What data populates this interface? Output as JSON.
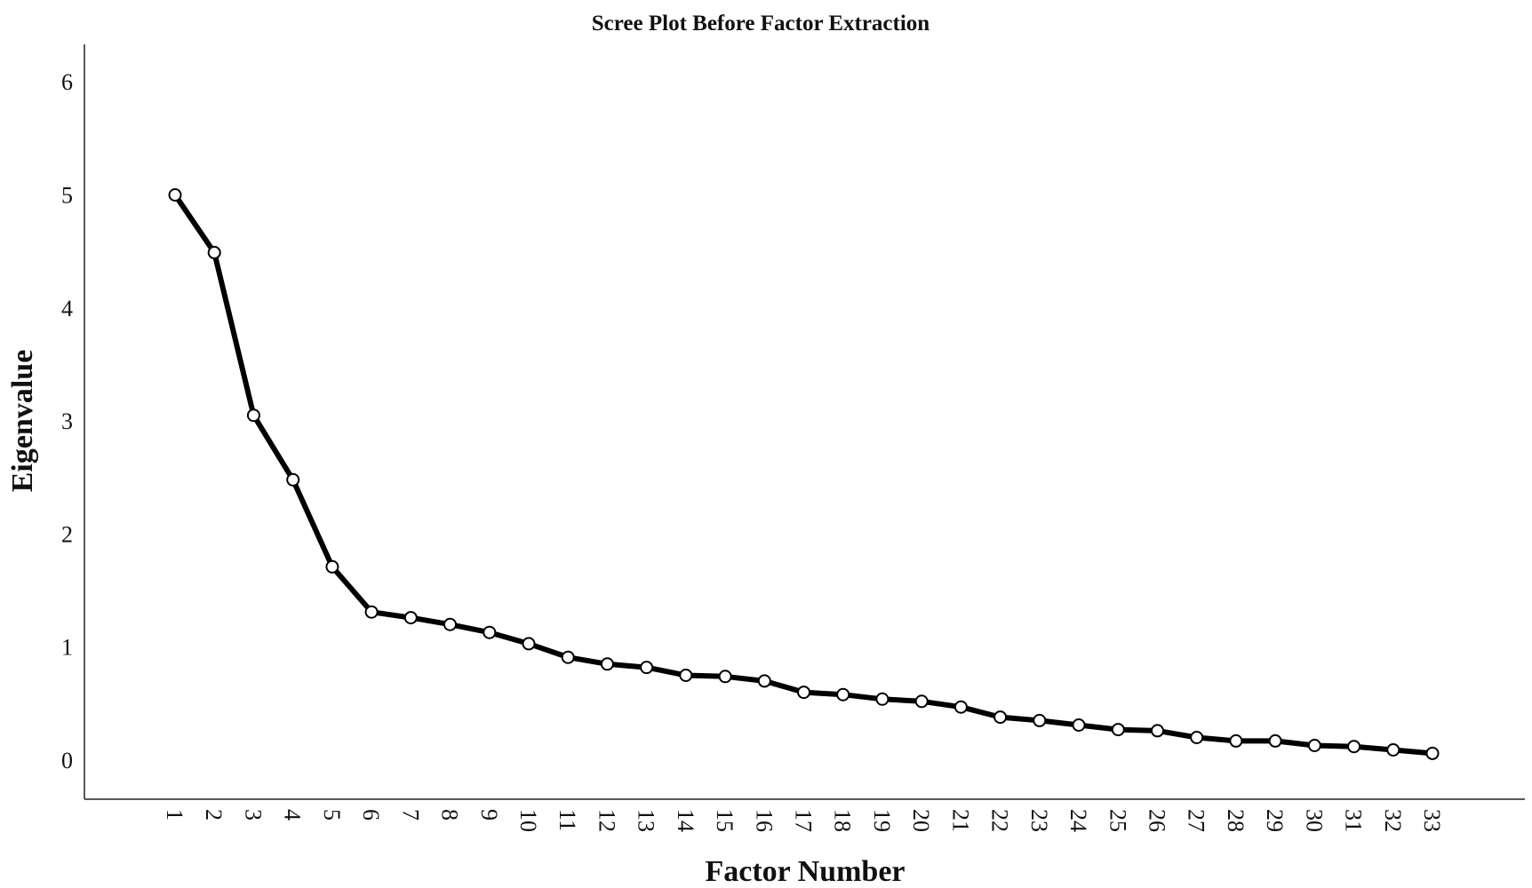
{
  "chart_data": {
    "type": "line",
    "title": "Scree Plot Before Factor Extraction",
    "xlabel": "Factor Number",
    "ylabel": "Eigenvalue",
    "ylim": [
      -0.35,
      6.3
    ],
    "yticks": [
      0,
      1,
      2,
      3,
      4,
      5,
      6
    ],
    "grid": false,
    "legend": "none",
    "x": [
      1,
      2,
      3,
      4,
      5,
      6,
      7,
      8,
      9,
      10,
      11,
      12,
      13,
      14,
      15,
      16,
      17,
      18,
      19,
      20,
      21,
      22,
      23,
      24,
      25,
      26,
      27,
      28,
      29,
      30,
      31,
      32,
      33
    ],
    "series": [
      {
        "values": [
          5.0,
          4.49,
          3.05,
          2.48,
          1.71,
          1.31,
          1.26,
          1.2,
          1.13,
          1.03,
          0.91,
          0.85,
          0.82,
          0.75,
          0.74,
          0.7,
          0.6,
          0.58,
          0.54,
          0.52,
          0.47,
          0.38,
          0.35,
          0.31,
          0.27,
          0.26,
          0.2,
          0.17,
          0.17,
          0.13,
          0.12,
          0.09,
          0.06
        ],
        "color": "#000000"
      }
    ]
  }
}
